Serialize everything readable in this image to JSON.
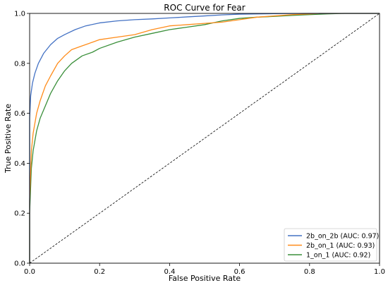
{
  "chart_data": {
    "type": "line",
    "title": "ROC Curve for Fear",
    "xlabel": "False Positive Rate",
    "ylabel": "True Positive Rate",
    "xlim": [
      0.0,
      1.0
    ],
    "ylim": [
      0.0,
      1.0
    ],
    "grid": false,
    "x_ticks": [
      "0.0",
      "0.2",
      "0.4",
      "0.6",
      "0.8",
      "1.0"
    ],
    "y_ticks": [
      "0.0",
      "0.2",
      "0.4",
      "0.6",
      "0.8",
      "1.0"
    ],
    "legend_position": "lower-right",
    "series": [
      {
        "name": "2b_on_2b (AUC: 0.97)",
        "color": "#4472c4",
        "x": [
          0.0,
          0.0,
          0.003,
          0.008,
          0.015,
          0.025,
          0.04,
          0.06,
          0.08,
          0.1,
          0.13,
          0.16,
          0.2,
          0.25,
          0.3,
          0.35,
          0.4,
          0.45,
          0.5,
          0.55,
          0.6,
          0.65,
          0.7,
          0.8,
          0.9,
          1.0
        ],
        "y": [
          0.0,
          0.58,
          0.67,
          0.72,
          0.76,
          0.8,
          0.84,
          0.875,
          0.9,
          0.915,
          0.935,
          0.95,
          0.962,
          0.97,
          0.975,
          0.978,
          0.982,
          0.986,
          0.99,
          0.994,
          0.997,
          0.998,
          0.999,
          1.0,
          1.0,
          1.0
        ]
      },
      {
        "name": "2b_on_1 (AUC: 0.93)",
        "color": "#ff8c1a",
        "x": [
          0.0,
          0.0,
          0.005,
          0.01,
          0.02,
          0.03,
          0.045,
          0.06,
          0.08,
          0.1,
          0.12,
          0.15,
          0.18,
          0.2,
          0.25,
          0.3,
          0.35,
          0.4,
          0.45,
          0.5,
          0.55,
          0.6,
          0.65,
          0.7,
          0.75,
          0.8,
          0.83,
          0.9,
          1.0
        ],
        "y": [
          0.0,
          0.25,
          0.45,
          0.52,
          0.6,
          0.65,
          0.71,
          0.75,
          0.8,
          0.83,
          0.855,
          0.87,
          0.885,
          0.895,
          0.905,
          0.915,
          0.935,
          0.95,
          0.955,
          0.96,
          0.965,
          0.975,
          0.985,
          0.99,
          0.995,
          0.998,
          1.0,
          1.0,
          1.0
        ]
      },
      {
        "name": "1_on_1 (AUC: 0.92)",
        "color": "#3a8f3a",
        "x": [
          0.0,
          0.0,
          0.005,
          0.01,
          0.02,
          0.03,
          0.045,
          0.06,
          0.08,
          0.1,
          0.12,
          0.15,
          0.18,
          0.2,
          0.25,
          0.3,
          0.35,
          0.4,
          0.45,
          0.5,
          0.55,
          0.6,
          0.65,
          0.7,
          0.75,
          0.8,
          0.85,
          0.9,
          1.0
        ],
        "y": [
          0.0,
          0.2,
          0.38,
          0.45,
          0.53,
          0.58,
          0.63,
          0.68,
          0.73,
          0.77,
          0.8,
          0.83,
          0.845,
          0.86,
          0.885,
          0.905,
          0.92,
          0.935,
          0.945,
          0.955,
          0.97,
          0.98,
          0.985,
          0.988,
          0.992,
          0.995,
          0.998,
          1.0,
          1.0
        ]
      }
    ],
    "reference_line": {
      "style": "dashed",
      "color": "#000000",
      "x": [
        0.0,
        1.0
      ],
      "y": [
        0.0,
        1.0
      ]
    }
  }
}
